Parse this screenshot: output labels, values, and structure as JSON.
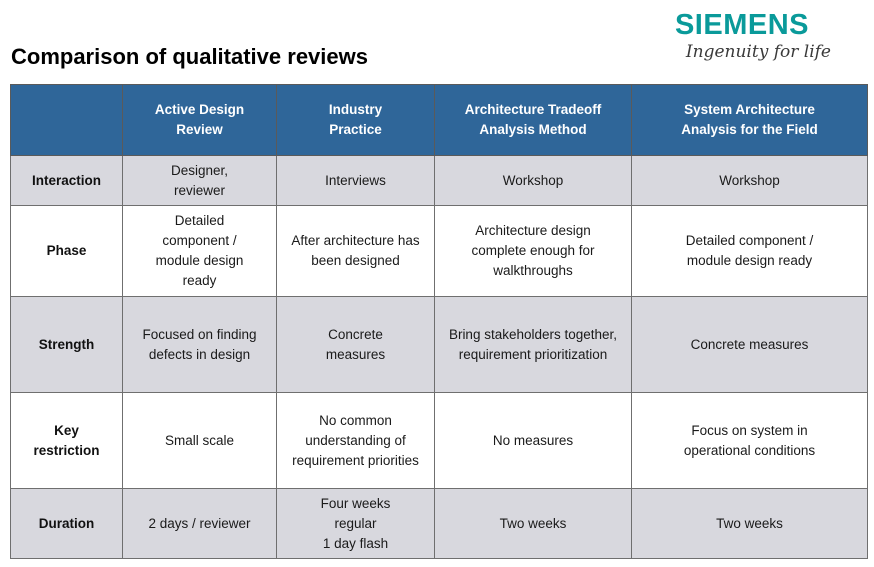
{
  "logo": {
    "word": "SIEMENS",
    "tagline": "Ingenuity for life"
  },
  "title": "Comparison of qualitative reviews",
  "table": {
    "corner": "",
    "columns": [
      "Active Design\nReview",
      "Industry\nPractice",
      "Architecture  Tradeoff\nAnalysis  Method",
      "System Architecture\nAnalysis for the Field"
    ],
    "rows": [
      {
        "label": "Interaction",
        "cells": [
          "Designer,\nreviewer",
          "Interviews",
          "Workshop",
          "Workshop"
        ]
      },
      {
        "label": "Phase",
        "cells": [
          "Detailed\ncomponent /\nmodule design\nready",
          "After architecture  has\nbeen  designed",
          "Architecture design\ncomplete enough for\nwalkthroughs",
          "Detailed component /\nmodule design ready"
        ]
      },
      {
        "label": "Strength",
        "cells": [
          "Focused on  finding\ndefects in  design",
          "Concrete\nmeasures",
          "Bring stakeholders  together,\nrequirement  prioritization",
          "Concrete measures"
        ]
      },
      {
        "label": "Key\nrestriction",
        "cells": [
          "Small scale",
          "No common\nunderstanding of\nrequirement  priorities",
          "No measures",
          "Focus on system in\noperational conditions"
        ]
      },
      {
        "label": "Duration",
        "cells": [
          "2 days / reviewer",
          "Four weeks\nregular\n1 day flash",
          "Two weeks",
          "Two weeks"
        ]
      }
    ]
  }
}
